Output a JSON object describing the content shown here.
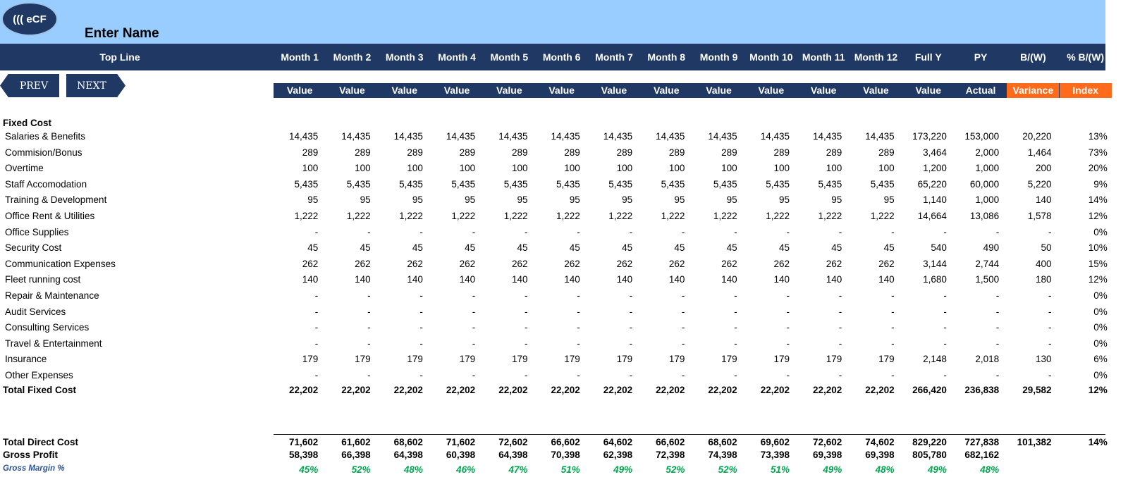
{
  "header": {
    "logo_text": "((( eCF",
    "company_name": "Enter Name",
    "top_line_label": "Top Line",
    "columns": [
      "Month 1",
      "Month 2",
      "Month 3",
      "Month 4",
      "Month 5",
      "Month 6",
      "Month 7",
      "Month 8",
      "Month 9",
      "Month 10",
      "Month 11",
      "Month 12",
      "Full Y",
      "PY",
      "B/(W)",
      "% B/(W)"
    ],
    "subcolumns": [
      "Value",
      "Value",
      "Value",
      "Value",
      "Value",
      "Value",
      "Value",
      "Value",
      "Value",
      "Value",
      "Value",
      "Value",
      "Value",
      "Actual",
      "Variance",
      "Index"
    ]
  },
  "nav": {
    "prev_label": "PREV",
    "next_label": "NEXT"
  },
  "colors": {
    "navy": "#1f3864",
    "banner": "#99ccff",
    "accent_orange": "#ff6b1a",
    "margin_green": "#00a550"
  },
  "section": {
    "title": "Fixed Cost"
  },
  "rows": [
    {
      "label": "Salaries & Benefits",
      "values": [
        "14,435",
        "14,435",
        "14,435",
        "14,435",
        "14,435",
        "14,435",
        "14,435",
        "14,435",
        "14,435",
        "14,435",
        "14,435",
        "14,435",
        "173,220",
        "153,000",
        "20,220",
        "13%"
      ]
    },
    {
      "label": "Commision/Bonus",
      "values": [
        "289",
        "289",
        "289",
        "289",
        "289",
        "289",
        "289",
        "289",
        "289",
        "289",
        "289",
        "289",
        "3,464",
        "2,000",
        "1,464",
        "73%"
      ]
    },
    {
      "label": "Overtime",
      "values": [
        "100",
        "100",
        "100",
        "100",
        "100",
        "100",
        "100",
        "100",
        "100",
        "100",
        "100",
        "100",
        "1,200",
        "1,000",
        "200",
        "20%"
      ]
    },
    {
      "label": "Staff Accomodation",
      "values": [
        "5,435",
        "5,435",
        "5,435",
        "5,435",
        "5,435",
        "5,435",
        "5,435",
        "5,435",
        "5,435",
        "5,435",
        "5,435",
        "5,435",
        "65,220",
        "60,000",
        "5,220",
        "9%"
      ]
    },
    {
      "label": "Training & Development",
      "values": [
        "95",
        "95",
        "95",
        "95",
        "95",
        "95",
        "95",
        "95",
        "95",
        "95",
        "95",
        "95",
        "1,140",
        "1,000",
        "140",
        "14%"
      ]
    },
    {
      "label": "Office Rent & Utilities",
      "values": [
        "1,222",
        "1,222",
        "1,222",
        "1,222",
        "1,222",
        "1,222",
        "1,222",
        "1,222",
        "1,222",
        "1,222",
        "1,222",
        "1,222",
        "14,664",
        "13,086",
        "1,578",
        "12%"
      ]
    },
    {
      "label": "Office Supplies",
      "values": [
        "-",
        "-",
        "-",
        "-",
        "-",
        "-",
        "-",
        "-",
        "-",
        "-",
        "-",
        "-",
        "-",
        "-",
        "-",
        "0%"
      ]
    },
    {
      "label": "Security Cost",
      "values": [
        "45",
        "45",
        "45",
        "45",
        "45",
        "45",
        "45",
        "45",
        "45",
        "45",
        "45",
        "45",
        "540",
        "490",
        "50",
        "10%"
      ]
    },
    {
      "label": "Communication Expenses",
      "values": [
        "262",
        "262",
        "262",
        "262",
        "262",
        "262",
        "262",
        "262",
        "262",
        "262",
        "262",
        "262",
        "3,144",
        "2,744",
        "400",
        "15%"
      ]
    },
    {
      "label": "Fleet running cost",
      "values": [
        "140",
        "140",
        "140",
        "140",
        "140",
        "140",
        "140",
        "140",
        "140",
        "140",
        "140",
        "140",
        "1,680",
        "1,500",
        "180",
        "12%"
      ]
    },
    {
      "label": "Repair & Maintenance",
      "values": [
        "-",
        "-",
        "-",
        "-",
        "-",
        "-",
        "-",
        "-",
        "-",
        "-",
        "-",
        "-",
        "-",
        "-",
        "-",
        "0%"
      ]
    },
    {
      "label": "Audit Services",
      "values": [
        "-",
        "-",
        "-",
        "-",
        "-",
        "-",
        "-",
        "-",
        "-",
        "-",
        "-",
        "-",
        "-",
        "-",
        "-",
        "0%"
      ]
    },
    {
      "label": "Consulting Services",
      "values": [
        "-",
        "-",
        "-",
        "-",
        "-",
        "-",
        "-",
        "-",
        "-",
        "-",
        "-",
        "-",
        "-",
        "-",
        "-",
        "0%"
      ]
    },
    {
      "label": "Travel & Entertainment",
      "values": [
        "-",
        "-",
        "-",
        "-",
        "-",
        "-",
        "-",
        "-",
        "-",
        "-",
        "-",
        "-",
        "-",
        "-",
        "-",
        "0%"
      ]
    },
    {
      "label": "Insurance",
      "values": [
        "179",
        "179",
        "179",
        "179",
        "179",
        "179",
        "179",
        "179",
        "179",
        "179",
        "179",
        "179",
        "2,148",
        "2,018",
        "130",
        "6%"
      ]
    },
    {
      "label": "Other Expenses",
      "values": [
        "-",
        "-",
        "-",
        "-",
        "-",
        "-",
        "-",
        "-",
        "-",
        "-",
        "-",
        "-",
        "-",
        "-",
        "-",
        "0%"
      ]
    }
  ],
  "totals": {
    "fixed": {
      "label": "Total Fixed Cost",
      "values": [
        "22,202",
        "22,202",
        "22,202",
        "22,202",
        "22,202",
        "22,202",
        "22,202",
        "22,202",
        "22,202",
        "22,202",
        "22,202",
        "22,202",
        "266,420",
        "236,838",
        "29,582",
        "12%"
      ]
    },
    "direct": {
      "label": "Total Direct Cost",
      "values": [
        "71,602",
        "61,602",
        "68,602",
        "71,602",
        "72,602",
        "66,602",
        "64,602",
        "66,602",
        "68,602",
        "69,602",
        "72,602",
        "74,602",
        "829,220",
        "727,838",
        "101,382",
        "14%"
      ]
    },
    "gross_profit": {
      "label": "Gross Profit",
      "values": [
        "58,398",
        "66,398",
        "64,398",
        "60,398",
        "64,398",
        "70,398",
        "62,398",
        "72,398",
        "74,398",
        "73,398",
        "69,398",
        "69,398",
        "805,780",
        "682,162",
        "",
        ""
      ]
    },
    "gross_margin": {
      "label": "Gross Margin %",
      "values": [
        "45%",
        "52%",
        "48%",
        "46%",
        "47%",
        "51%",
        "49%",
        "52%",
        "52%",
        "51%",
        "49%",
        "48%",
        "49%",
        "48%",
        "",
        ""
      ]
    }
  }
}
